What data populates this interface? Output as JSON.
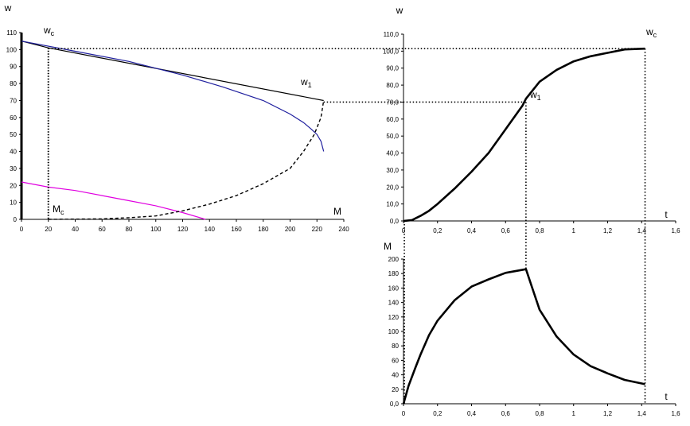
{
  "chart_data": [
    {
      "type": "line",
      "title": "",
      "xlabel": "M",
      "ylabel": "w",
      "xlim": [
        0,
        240
      ],
      "ylim": [
        0,
        110
      ],
      "x_ticks": [
        "0",
        "20",
        "40",
        "60",
        "80",
        "100",
        "120",
        "140",
        "160",
        "180",
        "200",
        "220",
        "240"
      ],
      "y_ticks": [
        "0",
        "10",
        "20",
        "30",
        "40",
        "50",
        "60",
        "70",
        "80",
        "90",
        "100",
        "110"
      ],
      "annotations": {
        "wc": "w",
        "wc_sub": "c",
        "w1": "w",
        "w1_sub": "1",
        "mc": "M",
        "mc_sub": "c"
      },
      "series": [
        {
          "style": "solid-black",
          "x": [
            0,
            20,
            225
          ],
          "y": [
            105,
            101,
            70
          ]
        },
        {
          "style": "solid-blue",
          "x": [
            0,
            40,
            80,
            120,
            150,
            180,
            200,
            210,
            216,
            220,
            223,
            225
          ],
          "y": [
            105,
            99,
            93,
            85,
            78,
            70,
            62,
            57,
            53,
            50,
            46,
            40
          ]
        },
        {
          "style": "solid-magenta",
          "x": [
            0,
            20,
            40,
            60,
            80,
            100,
            120,
            137
          ],
          "y": [
            22,
            19,
            17,
            14,
            11,
            8,
            4,
            0
          ]
        },
        {
          "style": "dashed-black",
          "x": [
            20,
            60,
            80,
            100,
            120,
            140,
            160,
            180,
            200,
            210,
            218,
            223,
            225
          ],
          "y": [
            0,
            0.3,
            1,
            2,
            5,
            9,
            14,
            21,
            30,
            40,
            50,
            60,
            70
          ]
        }
      ]
    },
    {
      "type": "line",
      "title": "",
      "xlabel": "t",
      "ylabel": "w",
      "xlim": [
        0,
        1.6
      ],
      "ylim": [
        0,
        110
      ],
      "x_ticks": [
        "0",
        "0,2",
        "0,4",
        "0,6",
        "0,8",
        "1",
        "1,2",
        "1,4",
        "1,6"
      ],
      "y_ticks": [
        "0,0",
        "10,0",
        "20,0",
        "30,0",
        "40,0",
        "50,0",
        "60,0",
        "70,0",
        "80,0",
        "90,0",
        "100,0",
        "110,0"
      ],
      "annotations": {
        "wc": "w",
        "wc_sub": "c",
        "w1": "w",
        "w1_sub": "1"
      },
      "series": [
        {
          "style": "thick-black",
          "x": [
            0,
            0.05,
            0.1,
            0.15,
            0.2,
            0.3,
            0.4,
            0.5,
            0.6,
            0.7,
            0.72,
            0.8,
            0.9,
            1.0,
            1.1,
            1.2,
            1.3,
            1.42
          ],
          "y": [
            0,
            0.5,
            3,
            6,
            10,
            19,
            29,
            40,
            54,
            68,
            72,
            82,
            89,
            94,
            97,
            99,
            101,
            101.5
          ]
        }
      ]
    },
    {
      "type": "line",
      "title": "",
      "xlabel": "t",
      "ylabel": "M",
      "xlim": [
        0,
        1.6
      ],
      "ylim": [
        0,
        200
      ],
      "x_ticks": [
        "0",
        "0,2",
        "0,4",
        "0,6",
        "0,8",
        "1",
        "1,2",
        "1,4",
        "1,6"
      ],
      "y_ticks": [
        "0,0",
        "20",
        "40",
        "60",
        "80",
        "100",
        "120",
        "140",
        "160",
        "180",
        "200"
      ],
      "series": [
        {
          "style": "thick-black",
          "x": [
            0,
            0.03,
            0.07,
            0.1,
            0.15,
            0.2,
            0.3,
            0.4,
            0.5,
            0.6,
            0.72,
            0.75,
            0.8,
            0.9,
            1.0,
            1.1,
            1.2,
            1.3,
            1.42
          ],
          "y": [
            0,
            25,
            50,
            68,
            95,
            115,
            143,
            162,
            172,
            181,
            186,
            165,
            130,
            93,
            68,
            52,
            42,
            33,
            27
          ]
        }
      ]
    }
  ],
  "colors": {
    "blue": "#1f1f9e",
    "magenta": "#e000e0",
    "black": "#000000"
  }
}
